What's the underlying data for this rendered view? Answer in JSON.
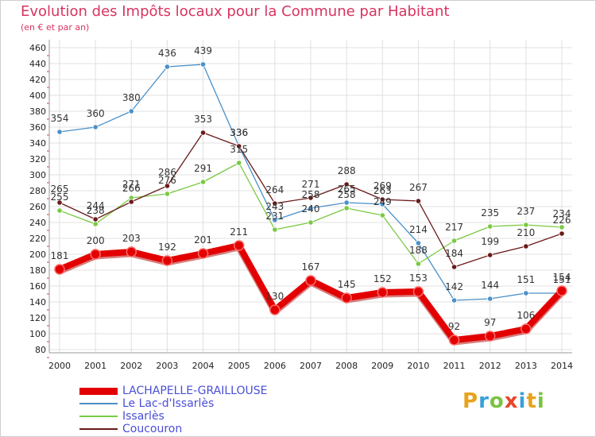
{
  "title": "Evolution des Impôts locaux pour la Commune par Habitant",
  "subtitle": "(en € et par an)",
  "logo": {
    "text": "Proxiti",
    "letters": [
      {
        "char": "P",
        "color": "#e8a21c"
      },
      {
        "char": "r",
        "color": "#3aa0d8"
      },
      {
        "char": "o",
        "color": "#7cc242"
      },
      {
        "char": "x",
        "color": "#e8452c"
      },
      {
        "char": "i",
        "color": "#3aa0d8"
      },
      {
        "char": "t",
        "color": "#e8a21c"
      },
      {
        "char": "i",
        "color": "#7cc242"
      }
    ]
  },
  "chart_data": {
    "type": "line",
    "title": "Evolution des Impôts locaux pour la Commune par Habitant",
    "subtitle": "(en € et par an)",
    "x": [
      "2000",
      "2001",
      "2002",
      "2003",
      "2004",
      "2005",
      "2006",
      "2007",
      "2008",
      "2009",
      "2010",
      "2011",
      "2012",
      "2013",
      "2014"
    ],
    "ylim": [
      80,
      460
    ],
    "ytick_step": 20,
    "grid": true,
    "legend_position": "bottom-left",
    "series": [
      {
        "name": "LACHAPELLE-GRAILLOUSE",
        "color": "#e30000",
        "values": [
          181,
          200,
          203,
          192,
          201,
          211,
          130,
          167,
          145,
          152,
          153,
          92,
          97,
          106,
          154
        ]
      },
      {
        "name": "Le Lac-d'Issarlès",
        "color": "#4a90c8",
        "values": [
          354,
          360,
          380,
          436,
          439,
          336,
          243,
          258,
          265,
          263,
          214,
          142,
          144,
          151,
          151
        ]
      },
      {
        "name": "Issarlès",
        "color": "#7ac943",
        "values": [
          255,
          238,
          271,
          276,
          291,
          315,
          231,
          240,
          258,
          249,
          188,
          217,
          235,
          237,
          234
        ]
      },
      {
        "name": "Coucouron",
        "color": "#6b1a1a",
        "values": [
          265,
          244,
          266,
          286,
          353,
          336,
          264,
          271,
          288,
          269,
          267,
          184,
          199,
          210,
          226
        ]
      }
    ],
    "value_labels": [
      [
        "181",
        "200",
        "203",
        "192",
        "201",
        "211",
        "130",
        "167",
        "145",
        "152",
        "153",
        "92",
        "97",
        "106",
        "154"
      ],
      [
        "354",
        "360",
        "380",
        "436",
        "439",
        "336",
        "243",
        "258",
        "265",
        "263",
        "214",
        "142",
        "144",
        "151",
        "151"
      ],
      [
        "255",
        "238",
        "271",
        "276",
        "291",
        "315",
        "231",
        "240",
        "258",
        "249",
        "188",
        "217",
        "235",
        "237",
        "234"
      ],
      [
        "265",
        "244",
        "266",
        "286",
        "353",
        "336",
        "264",
        "271",
        "288",
        "269",
        "267",
        "184",
        "199",
        "210",
        "226"
      ]
    ]
  }
}
